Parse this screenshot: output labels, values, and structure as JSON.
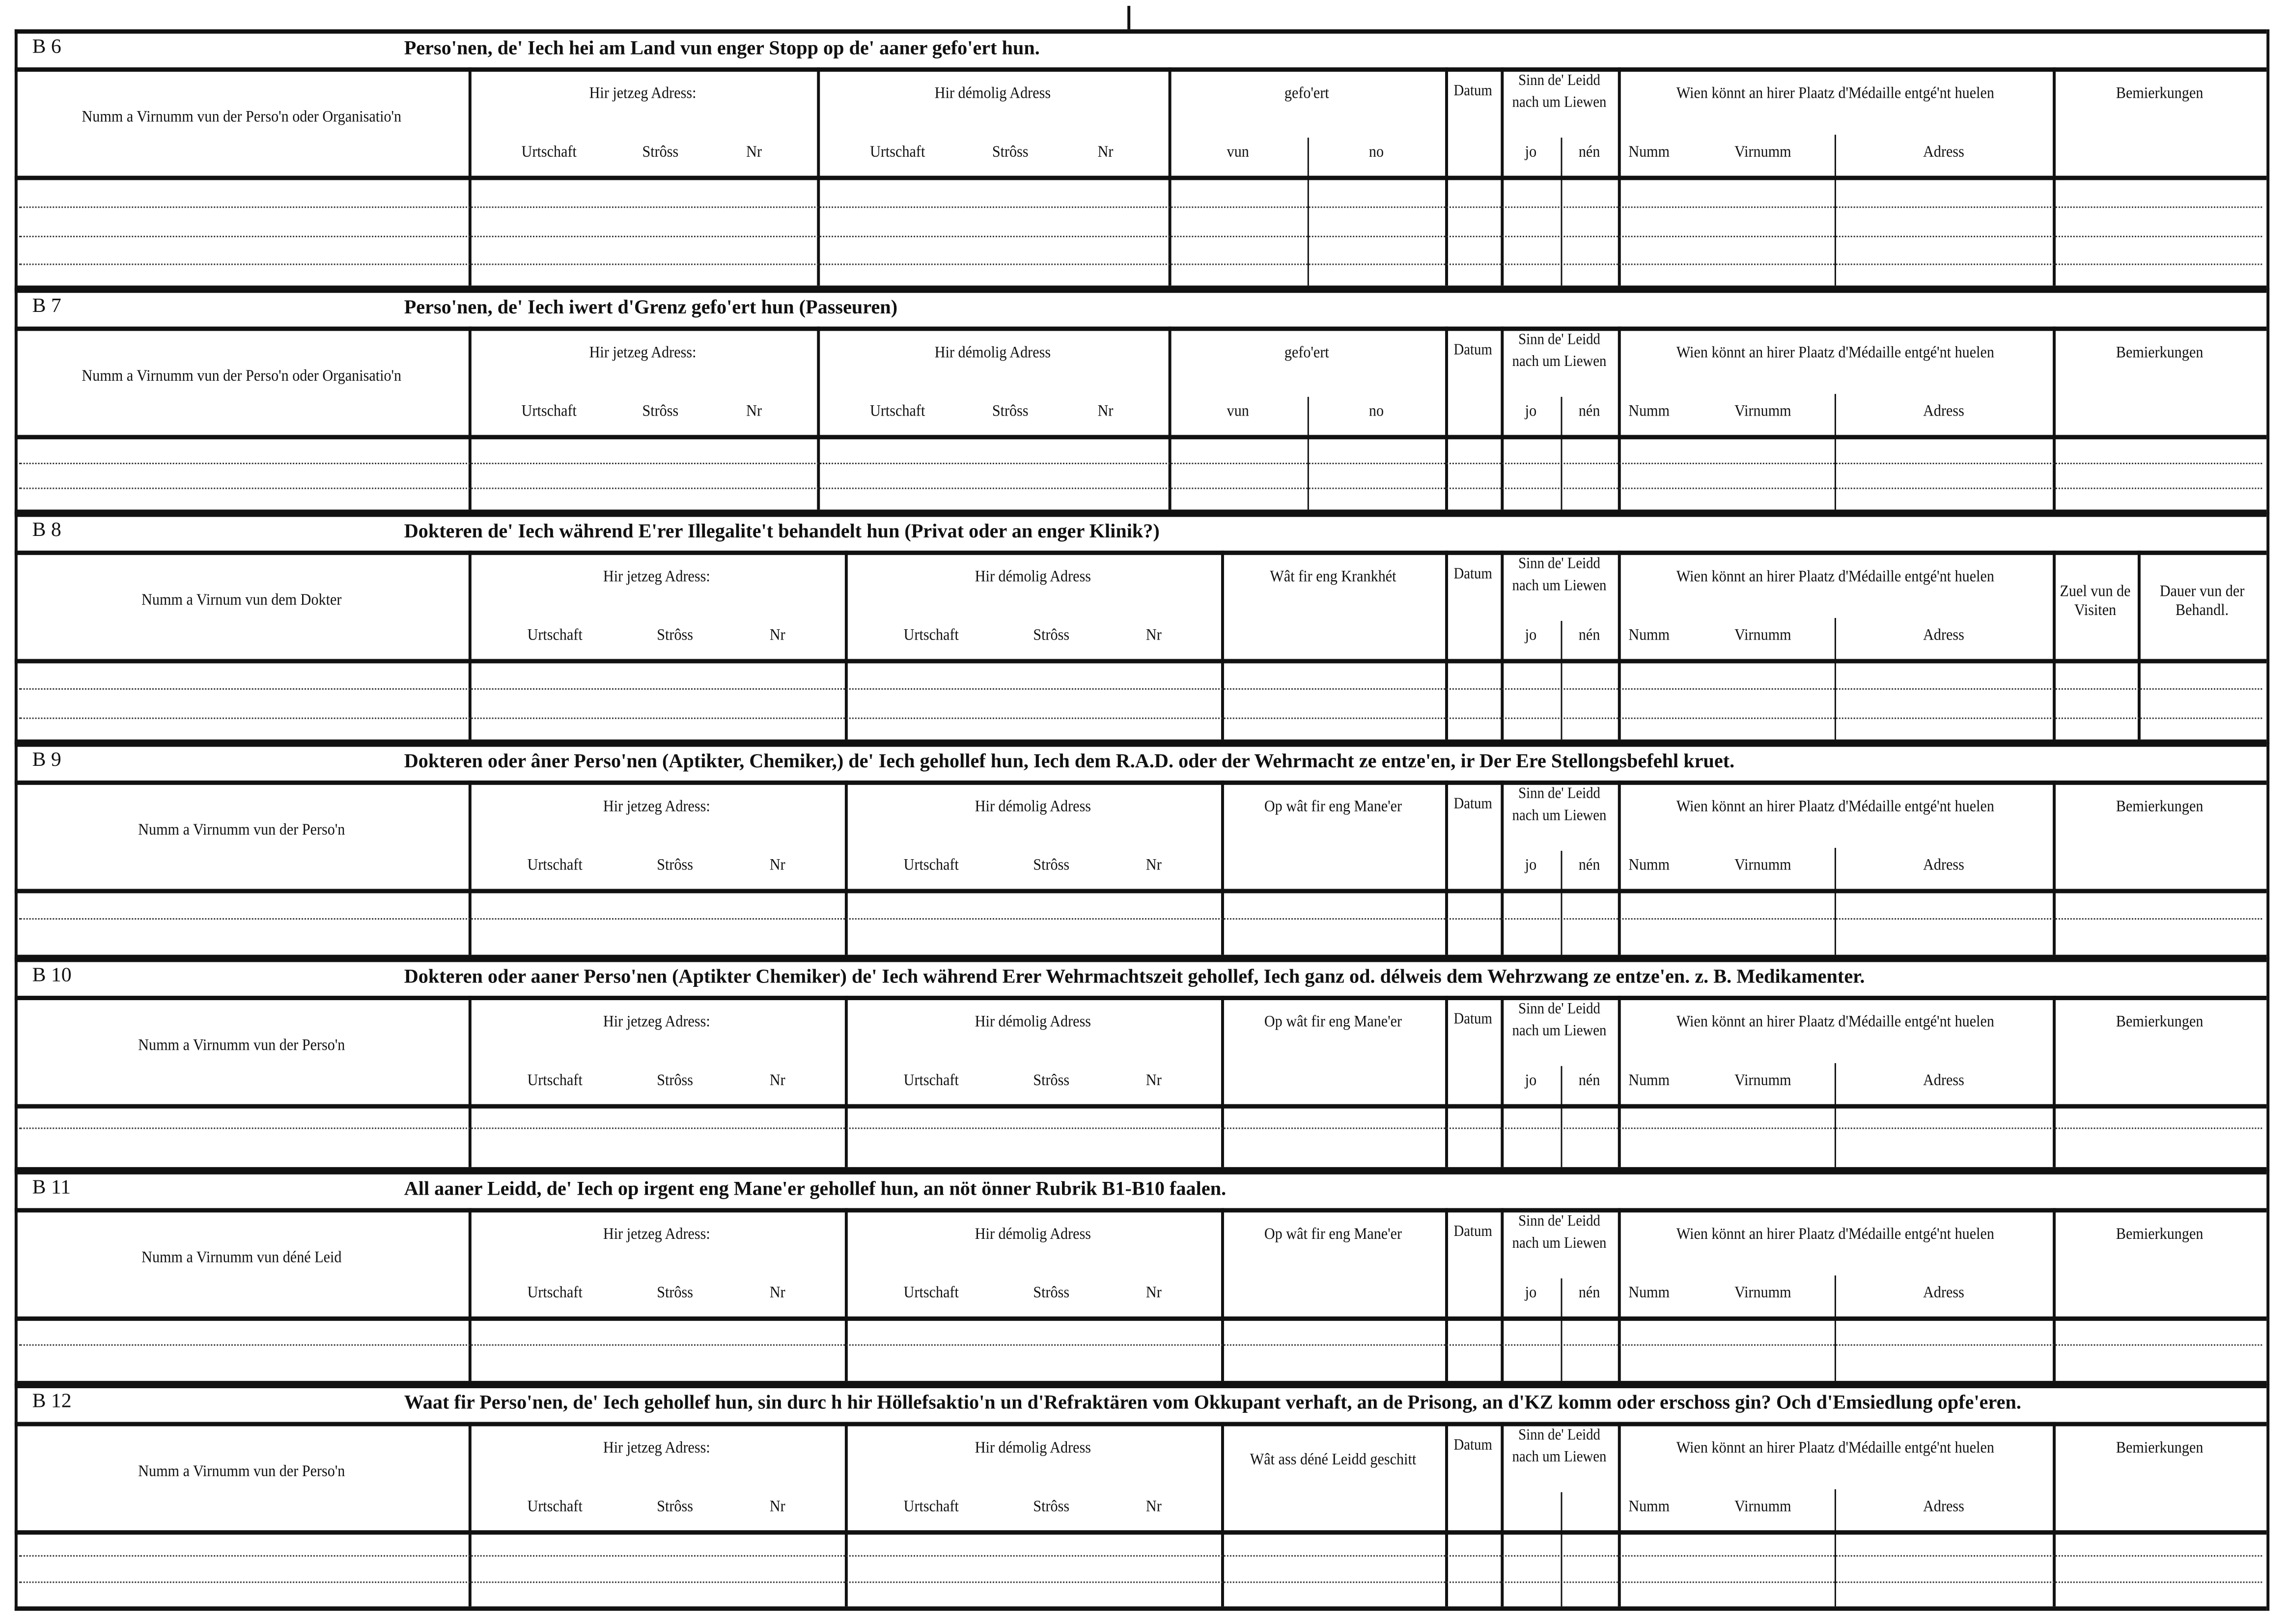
{
  "sections": [
    {
      "code": "B 6",
      "title": "Perso'nen, de' Iech hei am Land vun enger Stopp  op de' aaner gefo'ert hun.",
      "name_header": "Numm a Virnumm vun der Perso'n oder Organisatio'n",
      "columns": [
        {
          "header": "Hir jetzeg Adress:",
          "sub": [
            "Urtschaft",
            "Strôss",
            "Nr"
          ]
        },
        {
          "header": "Hir démolig Adress",
          "sub": [
            "Urtschaft",
            "Strôss",
            "Nr"
          ]
        },
        {
          "header": "gefo'ert",
          "sub": [
            "vun",
            "no"
          ]
        },
        {
          "header": "Datum",
          "sub": []
        },
        {
          "header": "Sinn  de' Leidd  nach um  Liewen",
          "sub": [
            "jo",
            "nén"
          ]
        },
        {
          "header": "Wien  könnt  an  hirer  Plaatz  d'Médaille entgé'nt huelen",
          "sub": [
            "Numm",
            "Virnumm",
            "Adress"
          ]
        },
        {
          "header": "Bemierkungen",
          "sub": []
        }
      ]
    },
    {
      "code": "B 7",
      "title": "Perso'nen, de' Iech iwert d'Grenz gefo'ert hun (Passeuren)",
      "name_header": "Numm a Virnumm vun der Perso'n oder Organisatio'n",
      "columns": [
        {
          "header": "Hir jetzeg Adress:",
          "sub": [
            "Urtschaft",
            "Strôss",
            "Nr"
          ]
        },
        {
          "header": "Hir démolig Adress",
          "sub": [
            "Urtschaft",
            "Strôss",
            "Nr"
          ]
        },
        {
          "header": "gefo'ert",
          "sub": [
            "vun",
            "no"
          ]
        },
        {
          "header": "Datum",
          "sub": []
        },
        {
          "header": "Sinn  de' Leidd  nach um  Liewen",
          "sub": [
            "jo",
            "nén"
          ]
        },
        {
          "header": "Wien  könnt  an  hirer  Plaatz  d'Médaille entgé'nt huelen",
          "sub": [
            "Numm",
            "Virnumm",
            "Adress"
          ]
        },
        {
          "header": "Bemierkungen",
          "sub": []
        }
      ]
    },
    {
      "code": "B 8",
      "title": "Dokteren de' Iech während E'rer Illegalite't behandelt hun (Privat  oder an enger Klinik?)",
      "name_header": "Numm a Virnum vun dem Dokter",
      "columns": [
        {
          "header": "Hir jetzeg Adress:",
          "sub": [
            "Urtschaft",
            "Strôss",
            "Nr"
          ]
        },
        {
          "header": "Hir démolig Adress",
          "sub": [
            "Urtschaft",
            "Strôss",
            "Nr"
          ]
        },
        {
          "header": "Wât fir eng Krankhét",
          "sub": []
        },
        {
          "header": "Datum",
          "sub": []
        },
        {
          "header": "Sinn  de' Leidd  nach um  Liewen",
          "sub": [
            "jo",
            "nén"
          ]
        },
        {
          "header": "Wien  könnt  an  hirer  Plaatz  d'Médaille entgé'nt huelen",
          "sub": [
            "Numm",
            "Virnumm",
            "Adress"
          ]
        },
        {
          "header": "Zuel vun de Visiten",
          "sub": []
        },
        {
          "header": "Dauer vun der Behandl.",
          "sub": []
        }
      ]
    },
    {
      "code": "B 9",
      "title": "Dokteren oder âner Perso'nen (Aptikter, Chemiker,) de' Iech gehollef hun, Iech dem R.A.D. oder der  Wehrmacht  ze  entze'en,  ir  Der  Ere  Stellongsbefehl  kruet.",
      "name_header": "Numm a Virnumm vun der Perso'n",
      "columns": [
        {
          "header": "Hir jetzeg Adress:",
          "sub": [
            "Urtschaft",
            "Strôss",
            "Nr"
          ]
        },
        {
          "header": "Hir démolig Adress",
          "sub": [
            "Urtschaft",
            "Strôss",
            "Nr"
          ]
        },
        {
          "header": "Op  wât fir eng Mane'er",
          "sub": []
        },
        {
          "header": "Datum",
          "sub": []
        },
        {
          "header": "Sinn  de' Leidd  nach um  Liewen",
          "sub": [
            "jo",
            "nén"
          ]
        },
        {
          "header": "Wien  könnt  an  hirer  Plaatz  d'Médaille entgé'nt huelen",
          "sub": [
            "Numm",
            "Virnumm",
            "Adress"
          ]
        },
        {
          "header": "Bemierkungen",
          "sub": []
        }
      ]
    },
    {
      "code": "B 10",
      "title": "Dokteren oder aaner Perso'nen (Aptikter Chemiker) de' Iech während Erer Wehrmachtszeit gehollef, Iech ganz od. délweis dem Wehrzwang ze entze'en. z. B. Medikamenter.",
      "name_header": "Numm a Virnumm vun der Perso'n",
      "columns": [
        {
          "header": "Hir jetzeg Adress:",
          "sub": [
            "Urtschaft",
            "Strôss",
            "Nr"
          ]
        },
        {
          "header": "Hir démolig Adress",
          "sub": [
            "Urtschaft",
            "Strôss",
            "Nr"
          ]
        },
        {
          "header": "Op  wât fir eng Mane'er",
          "sub": []
        },
        {
          "header": "Datum",
          "sub": []
        },
        {
          "header": "Sinn  de' Leidd  nach um  Liewen",
          "sub": [
            "jo",
            "nén"
          ]
        },
        {
          "header": "Wien  könnt  an  hirer  Plaatz  d'Médaille entgé'nt huelen",
          "sub": [
            "Numm",
            "Virnumm",
            "Adress"
          ]
        },
        {
          "header": "Bemierkungen",
          "sub": []
        }
      ]
    },
    {
      "code": "B 11",
      "title": "All aaner Leidd, de' Iech op irgent eng Mane'er  gehollef hun, an nöt önner Rubrik B1-B10 faalen.",
      "name_header": "Numm a Virnumm vun déné Leid",
      "columns": [
        {
          "header": "Hir jetzeg Adress:",
          "sub": [
            "Urtschaft",
            "Strôss",
            "Nr"
          ]
        },
        {
          "header": "Hir démolig Adress",
          "sub": [
            "Urtschaft",
            "Strôss",
            "Nr"
          ]
        },
        {
          "header": "Op  wât fir eng Mane'er",
          "sub": []
        },
        {
          "header": "Datum",
          "sub": []
        },
        {
          "header": "Sinn  de' Leidd  nach um  Liewen",
          "sub": [
            "jo",
            "nén"
          ]
        },
        {
          "header": "Wien  könnt  an  hirer  Plaatz  d'Médaille entgé'nt huelen",
          "sub": [
            "Numm",
            "Virnumm",
            "Adress"
          ]
        },
        {
          "header": "Bemierkungen",
          "sub": []
        }
      ]
    },
    {
      "code": "B 12",
      "title": "Waat fir Perso'nen, de' Iech gehollef hun, sin durc h hir Höllefsaktio'n un d'Refraktären vom Okkupant verhaft, an de Prisong, an d'KZ komm oder  erschoss gin? Och d'Emsiedlung opfe'eren.",
      "name_header": "Numm a Virnumm vun der Perso'n",
      "columns": [
        {
          "header": "Hir jetzeg Adress:",
          "sub": [
            "Urtschaft",
            "Strôss",
            "Nr"
          ]
        },
        {
          "header": "Hir démolig Adress",
          "sub": [
            "Urtschaft",
            "Strôss",
            "Nr"
          ]
        },
        {
          "header": "Wât ass déné Leidd geschitt",
          "sub": []
        },
        {
          "header": "Datum",
          "sub": []
        },
        {
          "header": "Sinn  de' Leidd  nach um  Liewen",
          "sub": []
        },
        {
          "header": "Wien  könnt  an  hirer  Plaatz  d'Médaille entgé'nt huelen",
          "sub": [
            "Numm",
            "Virnumm",
            "Adress"
          ]
        },
        {
          "header": "Bemierkungen",
          "sub": []
        }
      ]
    }
  ]
}
